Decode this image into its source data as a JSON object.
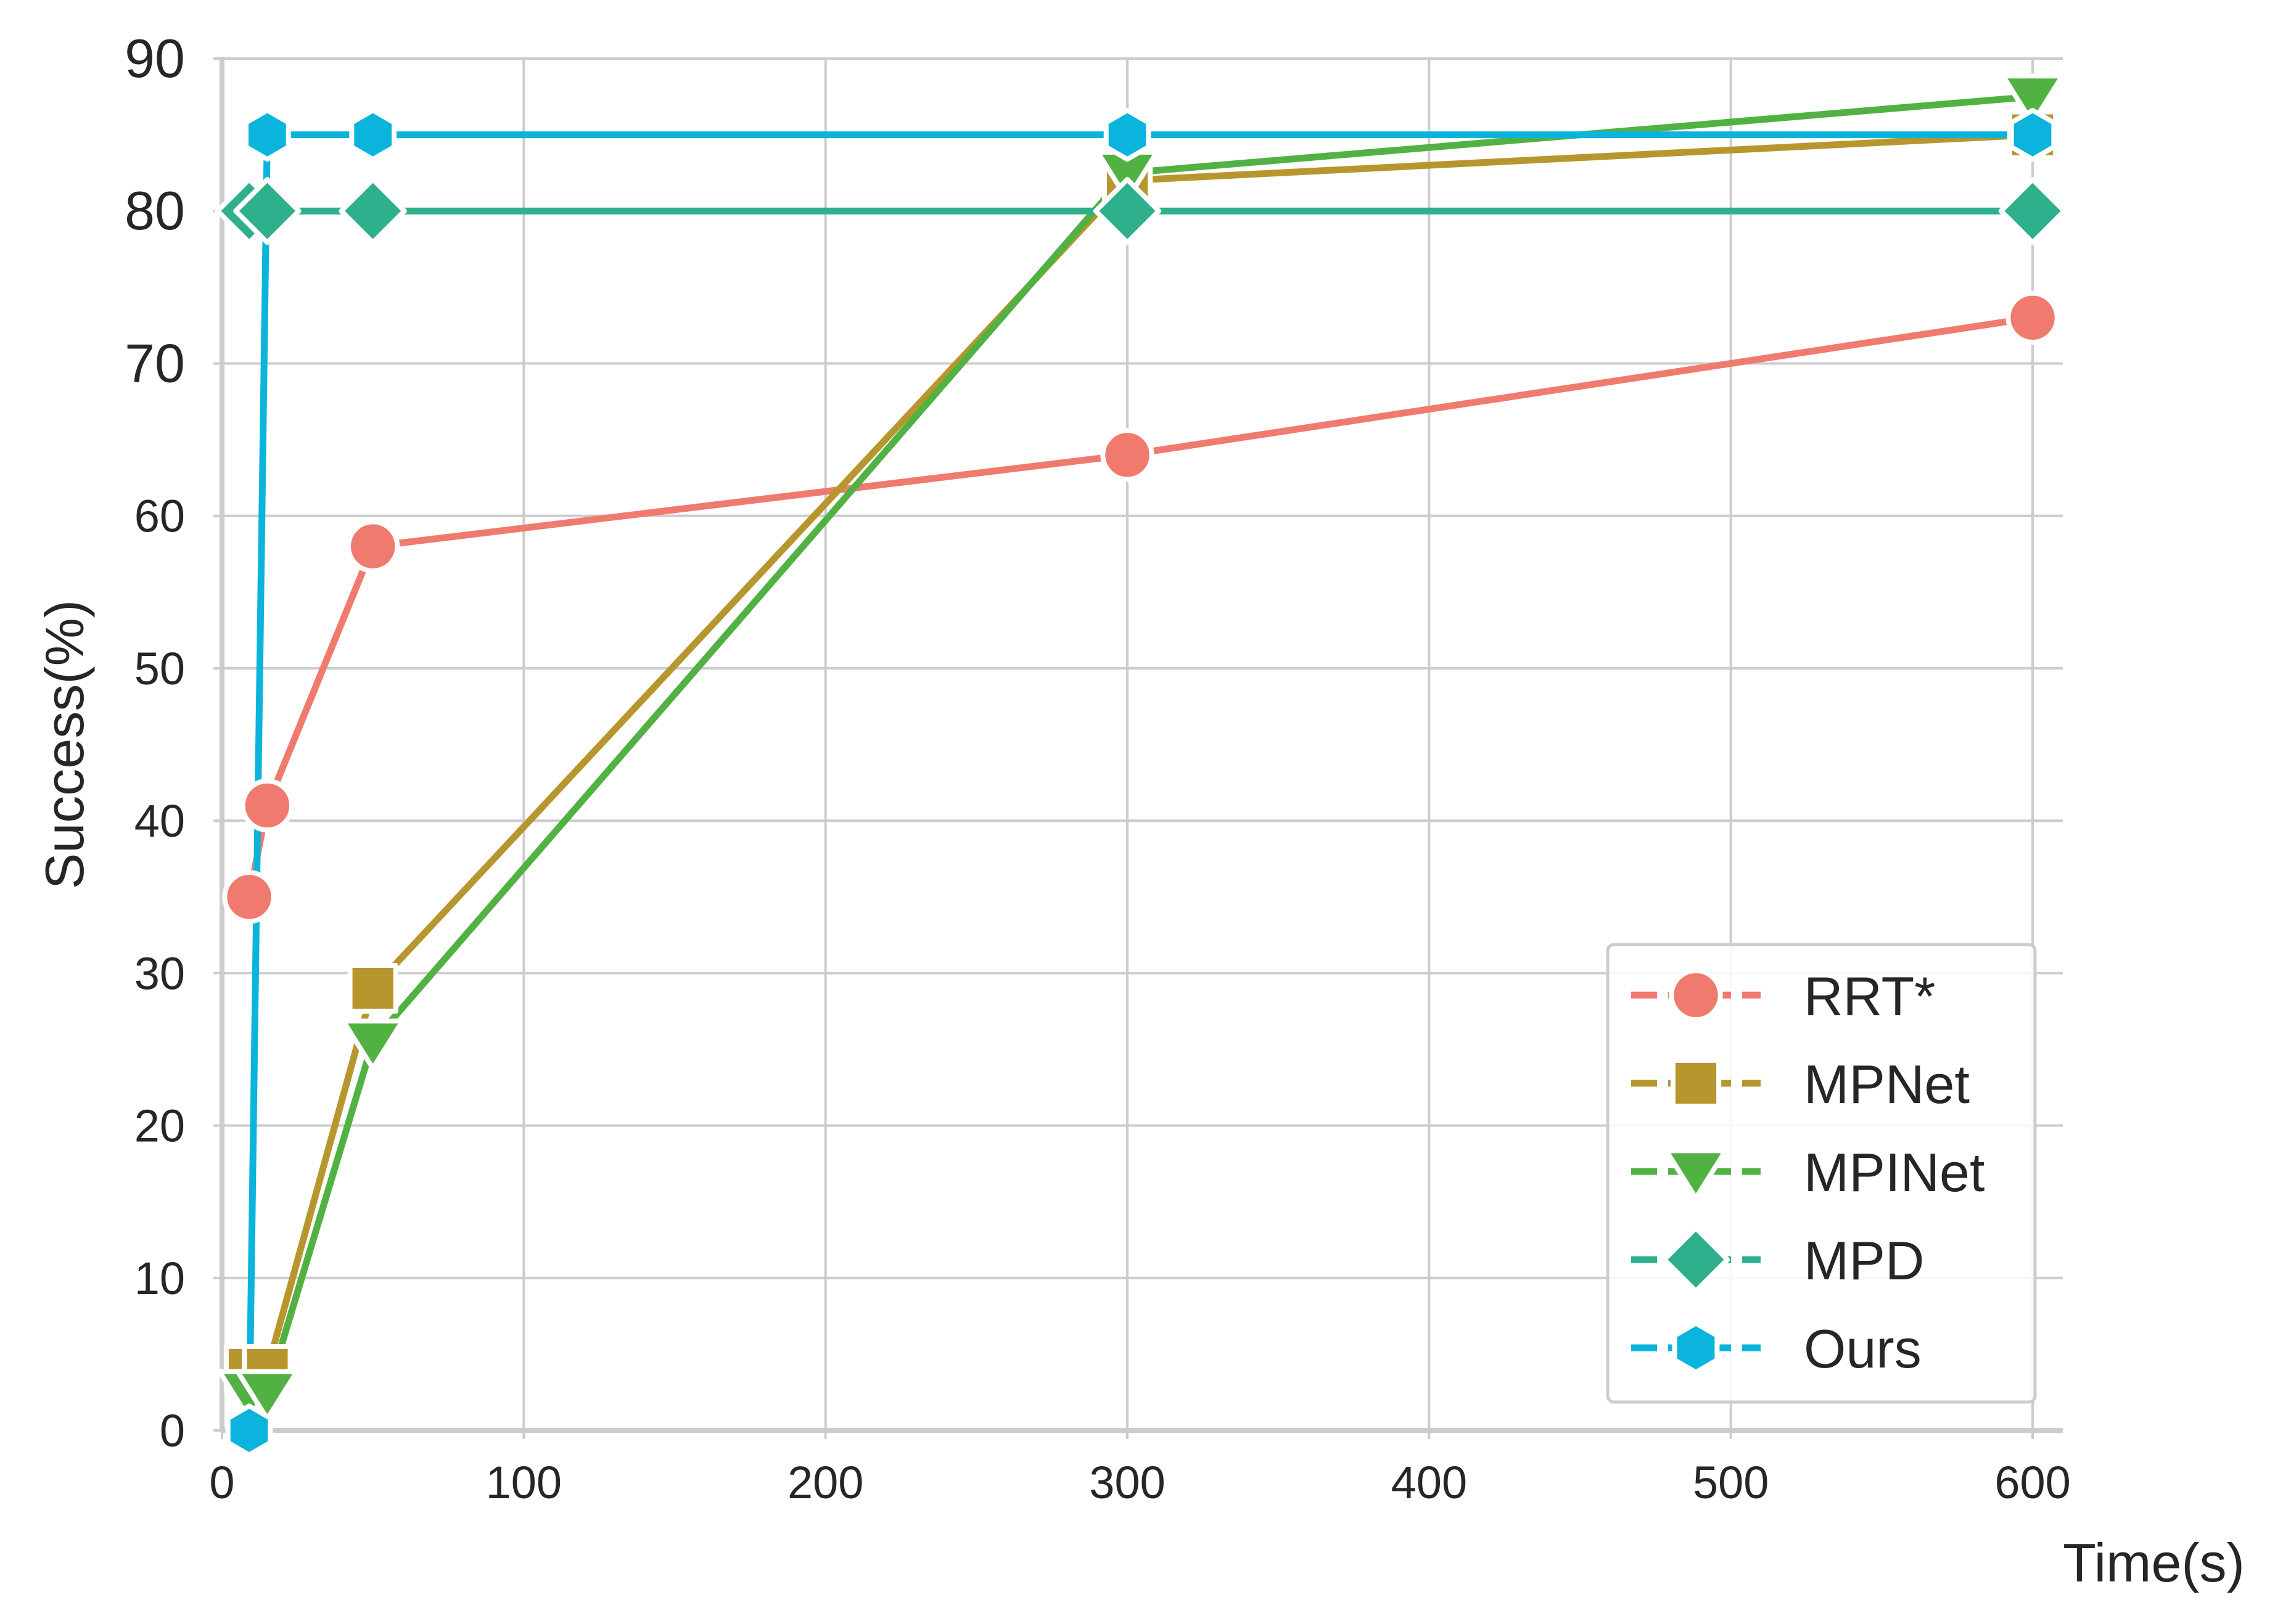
{
  "chart_data": {
    "type": "line",
    "title": "",
    "xlabel": "Time(s)",
    "ylabel": "Success(%)",
    "xlim": [
      0,
      610
    ],
    "ylim": [
      0,
      90
    ],
    "xticks": [
      0,
      100,
      200,
      300,
      400,
      500,
      600
    ],
    "yticks": [
      0,
      10,
      20,
      30,
      40,
      50,
      60,
      70,
      80,
      90
    ],
    "grid": true,
    "legend_position": "bottom-right",
    "series": [
      {
        "name": "RRT*",
        "color": "#f07a6e",
        "marker": "circle",
        "x": [
          9,
          15,
          50,
          300,
          600
        ],
        "y": [
          35,
          41,
          58,
          64,
          73
        ]
      },
      {
        "name": "MPNet",
        "color": "#b8962e",
        "marker": "square",
        "x": [
          9,
          15,
          50,
          300,
          600
        ],
        "y": [
          4,
          4,
          29,
          82,
          85
        ]
      },
      {
        "name": "MPINet",
        "color": "#52b143",
        "marker": "triangle-down",
        "x": [
          9,
          15,
          50,
          300,
          600
        ],
        "y": [
          2.5,
          2.5,
          25.5,
          82.5,
          87.5
        ]
      },
      {
        "name": "MPD",
        "color": "#2fb08d",
        "marker": "diamond",
        "x": [
          9,
          15,
          50,
          300,
          600
        ],
        "y": [
          80,
          80,
          80,
          80,
          80
        ]
      },
      {
        "name": "Ours",
        "color": "#0bb4dc",
        "marker": "hexagon",
        "x": [
          9,
          15,
          50,
          300,
          600
        ],
        "y": [
          0,
          85,
          85,
          85,
          85
        ]
      }
    ]
  }
}
